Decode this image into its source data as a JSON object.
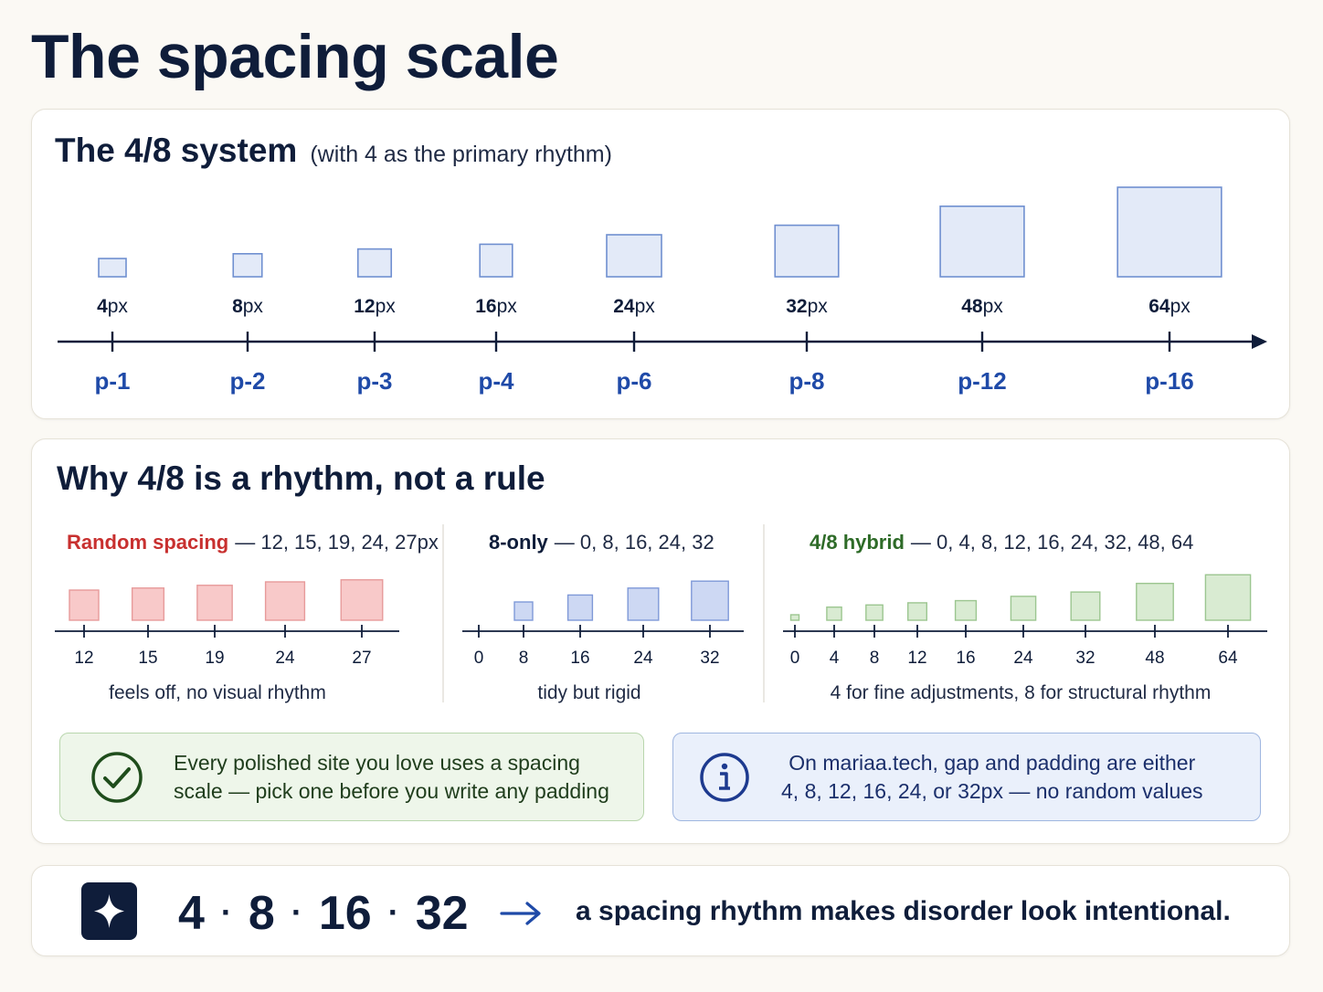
{
  "title": "The spacing scale",
  "system": {
    "heading": "The 4/8 system",
    "subheading": "(with 4 as the primary rhythm)",
    "steps": [
      {
        "value": 4,
        "unit": "px",
        "token": "p-1"
      },
      {
        "value": 8,
        "unit": "px",
        "token": "p-2"
      },
      {
        "value": 12,
        "unit": "px",
        "token": "p-3"
      },
      {
        "value": 16,
        "unit": "px",
        "token": "p-4"
      },
      {
        "value": 24,
        "unit": "px",
        "token": "p-6"
      },
      {
        "value": 32,
        "unit": "px",
        "token": "p-8"
      },
      {
        "value": 48,
        "unit": "px",
        "token": "p-12"
      },
      {
        "value": 64,
        "unit": "px",
        "token": "p-16"
      }
    ]
  },
  "rhythm": {
    "heading": "Why 4/8 is a rhythm, not a rule",
    "panels": [
      {
        "name": "Random spacing",
        "values_text": "— 12, 15, 19, 24, 27px",
        "values": [
          12,
          15,
          19,
          24,
          27
        ],
        "ticks": [
          "12",
          "15",
          "19",
          "24",
          "27"
        ],
        "caption": "feels off, no visual rhythm"
      },
      {
        "name": "8-only",
        "values_text": "— 0, 8, 16, 24, 32",
        "values": [
          0,
          8,
          16,
          24,
          32
        ],
        "ticks": [
          "0",
          "8",
          "16",
          "24",
          "32"
        ],
        "caption": "tidy but rigid"
      },
      {
        "name": "4/8 hybrid",
        "values_text": "— 0, 4, 8, 12, 16, 24, 32, 48, 64",
        "values": [
          0,
          4,
          8,
          12,
          16,
          24,
          32,
          48,
          64
        ],
        "ticks": [
          "0",
          "4",
          "8",
          "12",
          "16",
          "24",
          "32",
          "48",
          "64"
        ],
        "caption": "4 for fine adjustments, 8 for structural rhythm"
      }
    ],
    "callouts": {
      "tip": {
        "line1": "Every polished site you love uses a spacing",
        "line2": "scale — pick one before you write any padding",
        "icon": "check-circle-icon"
      },
      "info": {
        "line1": "On mariaa.tech, gap and padding are either",
        "line2": "4, 8, 12, 16, 24, or 32px — no random values",
        "icon": "info-circle-icon"
      }
    }
  },
  "summary": {
    "icon": "sparkle-icon",
    "sequence": [
      "4",
      "8",
      "16",
      "32"
    ],
    "separator": "·",
    "tagline": "a spacing rhythm makes disorder look intentional."
  },
  "colors": {
    "navy": "#0f1d3a",
    "token_blue": "#1f4aa8",
    "random_red": "#c8302f",
    "hybrid_green": "#2e6b28",
    "box_blue_fill": "#e3eaf8",
    "box_blue_stroke": "#6f8fd0",
    "red_fill": "#f8c9c9",
    "red_stroke": "#e79b9b",
    "blue_fill": "#cdd8f3",
    "blue_stroke": "#7f99d8",
    "green_fill": "#d9ebd2",
    "green_stroke": "#9cc690"
  }
}
